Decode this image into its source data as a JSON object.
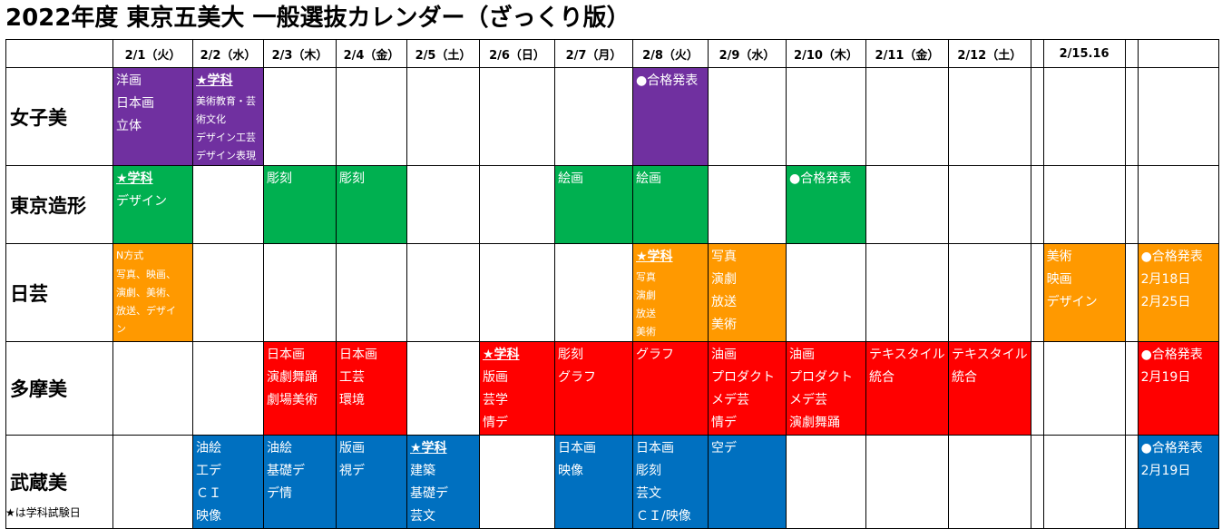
{
  "title": "2022年度 東京五美大 一般選抜カレンダー（ざっくり版）",
  "footnote": "★は学科試験日",
  "colors": {
    "女子美": "#7030a0",
    "東京造形": "#00b050",
    "日芸": "#ff9900",
    "多摩美": "#ff0000",
    "武蔵美": "#0070c0"
  },
  "headers": [
    "",
    "2/1（火）",
    "2/2（水）",
    "2/3（木）",
    "2/4（金）",
    "2/5（土）",
    "2/6（日）",
    "2/7（月）",
    "2/8（火）",
    "2/9（水）",
    "2/10（木）",
    "2/11（金）",
    "2/12（土）",
    "",
    "2/15.16",
    "",
    ""
  ],
  "rows": [
    {
      "name": "女子美",
      "cells": [
        {
          "color": "purple",
          "lines": [
            "洋画",
            "日本画",
            "立体"
          ]
        },
        {
          "color": "purple",
          "lines": [
            "★学科",
            "美術教育・芸",
            "術文化",
            "デザイン工芸",
            "デザイン表現"
          ]
        },
        {},
        {},
        {},
        {},
        {},
        {
          "color": "purple",
          "lines": [
            "●合格発表"
          ]
        },
        {},
        {},
        {},
        {},
        {},
        {},
        {},
        {}
      ]
    },
    {
      "name": "東京造形",
      "cells": [
        {
          "color": "green",
          "lines": [
            "★学科",
            "デザイン"
          ]
        },
        {},
        {
          "color": "green",
          "lines": [
            "彫刻"
          ]
        },
        {
          "color": "green",
          "lines": [
            "彫刻"
          ]
        },
        {},
        {},
        {
          "color": "green",
          "lines": [
            "絵画"
          ]
        },
        {
          "color": "green",
          "lines": [
            "絵画"
          ]
        },
        {},
        {
          "color": "green",
          "lines": [
            "●合格発表"
          ]
        },
        {},
        {},
        {},
        {},
        {},
        {}
      ]
    },
    {
      "name": "日芸",
      "cells": [
        {
          "color": "orange",
          "lines": [
            "N方式",
            "写真、映画、",
            "演劇、美術、",
            "放送、デザイ",
            "ン"
          ]
        },
        {},
        {},
        {},
        {},
        {},
        {},
        {
          "color": "orange",
          "lines": [
            "★学科",
            "写真",
            "演劇",
            "放送",
            "美術"
          ]
        },
        {
          "color": "orange",
          "lines": [
            "写真",
            "演劇",
            "放送",
            "美術"
          ]
        },
        {},
        {},
        {},
        {},
        {
          "color": "orange",
          "lines": [
            "美術",
            "映画",
            "デザイン"
          ]
        },
        {},
        {
          "color": "orange",
          "lines": [
            "●合格発表",
            "2月18日",
            "2月25日"
          ]
        }
      ]
    },
    {
      "name": "多摩美",
      "cells": [
        {},
        {},
        {
          "color": "red",
          "lines": [
            "日本画",
            "演劇舞踊",
            "劇場美術"
          ]
        },
        {
          "color": "red",
          "lines": [
            "日本画",
            "工芸",
            "環境"
          ]
        },
        {},
        {
          "color": "red",
          "lines": [
            "★学科",
            "版画",
            "芸学",
            "情デ"
          ]
        },
        {
          "color": "red",
          "lines": [
            "彫刻",
            "グラフ"
          ]
        },
        {
          "color": "red",
          "lines": [
            "グラフ"
          ]
        },
        {
          "color": "red",
          "lines": [
            "油画",
            "プロダクト",
            "メデ芸",
            "情デ"
          ]
        },
        {
          "color": "red",
          "lines": [
            "油画",
            "プロダクト",
            "メデ芸",
            "演劇舞踊"
          ]
        },
        {
          "color": "red",
          "lines": [
            "テキスタイル",
            "統合"
          ]
        },
        {
          "color": "red",
          "lines": [
            "テキスタイル",
            "統合"
          ]
        },
        {},
        {},
        {},
        {
          "color": "red",
          "lines": [
            "●合格発表",
            "2月19日"
          ]
        }
      ]
    },
    {
      "name": "武蔵美",
      "cells": [
        {},
        {
          "color": "blue",
          "lines": [
            "油絵",
            "工デ",
            "ＣＩ",
            "映像"
          ]
        },
        {
          "color": "blue",
          "lines": [
            "油絵",
            "基礎デ",
            "デ情"
          ]
        },
        {
          "color": "blue",
          "lines": [
            "版画",
            "視デ"
          ]
        },
        {
          "color": "blue",
          "lines": [
            "★学科",
            "建築",
            "基礎デ",
            "芸文"
          ]
        },
        {},
        {
          "color": "blue",
          "lines": [
            "日本画",
            "映像"
          ]
        },
        {
          "color": "blue",
          "lines": [
            "日本画",
            "彫刻",
            "芸文",
            "ＣＩ/映像"
          ]
        },
        {
          "color": "blue",
          "lines": [
            "空デ"
          ]
        },
        {},
        {},
        {},
        {},
        {},
        {},
        {
          "color": "blue",
          "lines": [
            "●合格発表",
            "2月19日"
          ]
        }
      ]
    }
  ]
}
